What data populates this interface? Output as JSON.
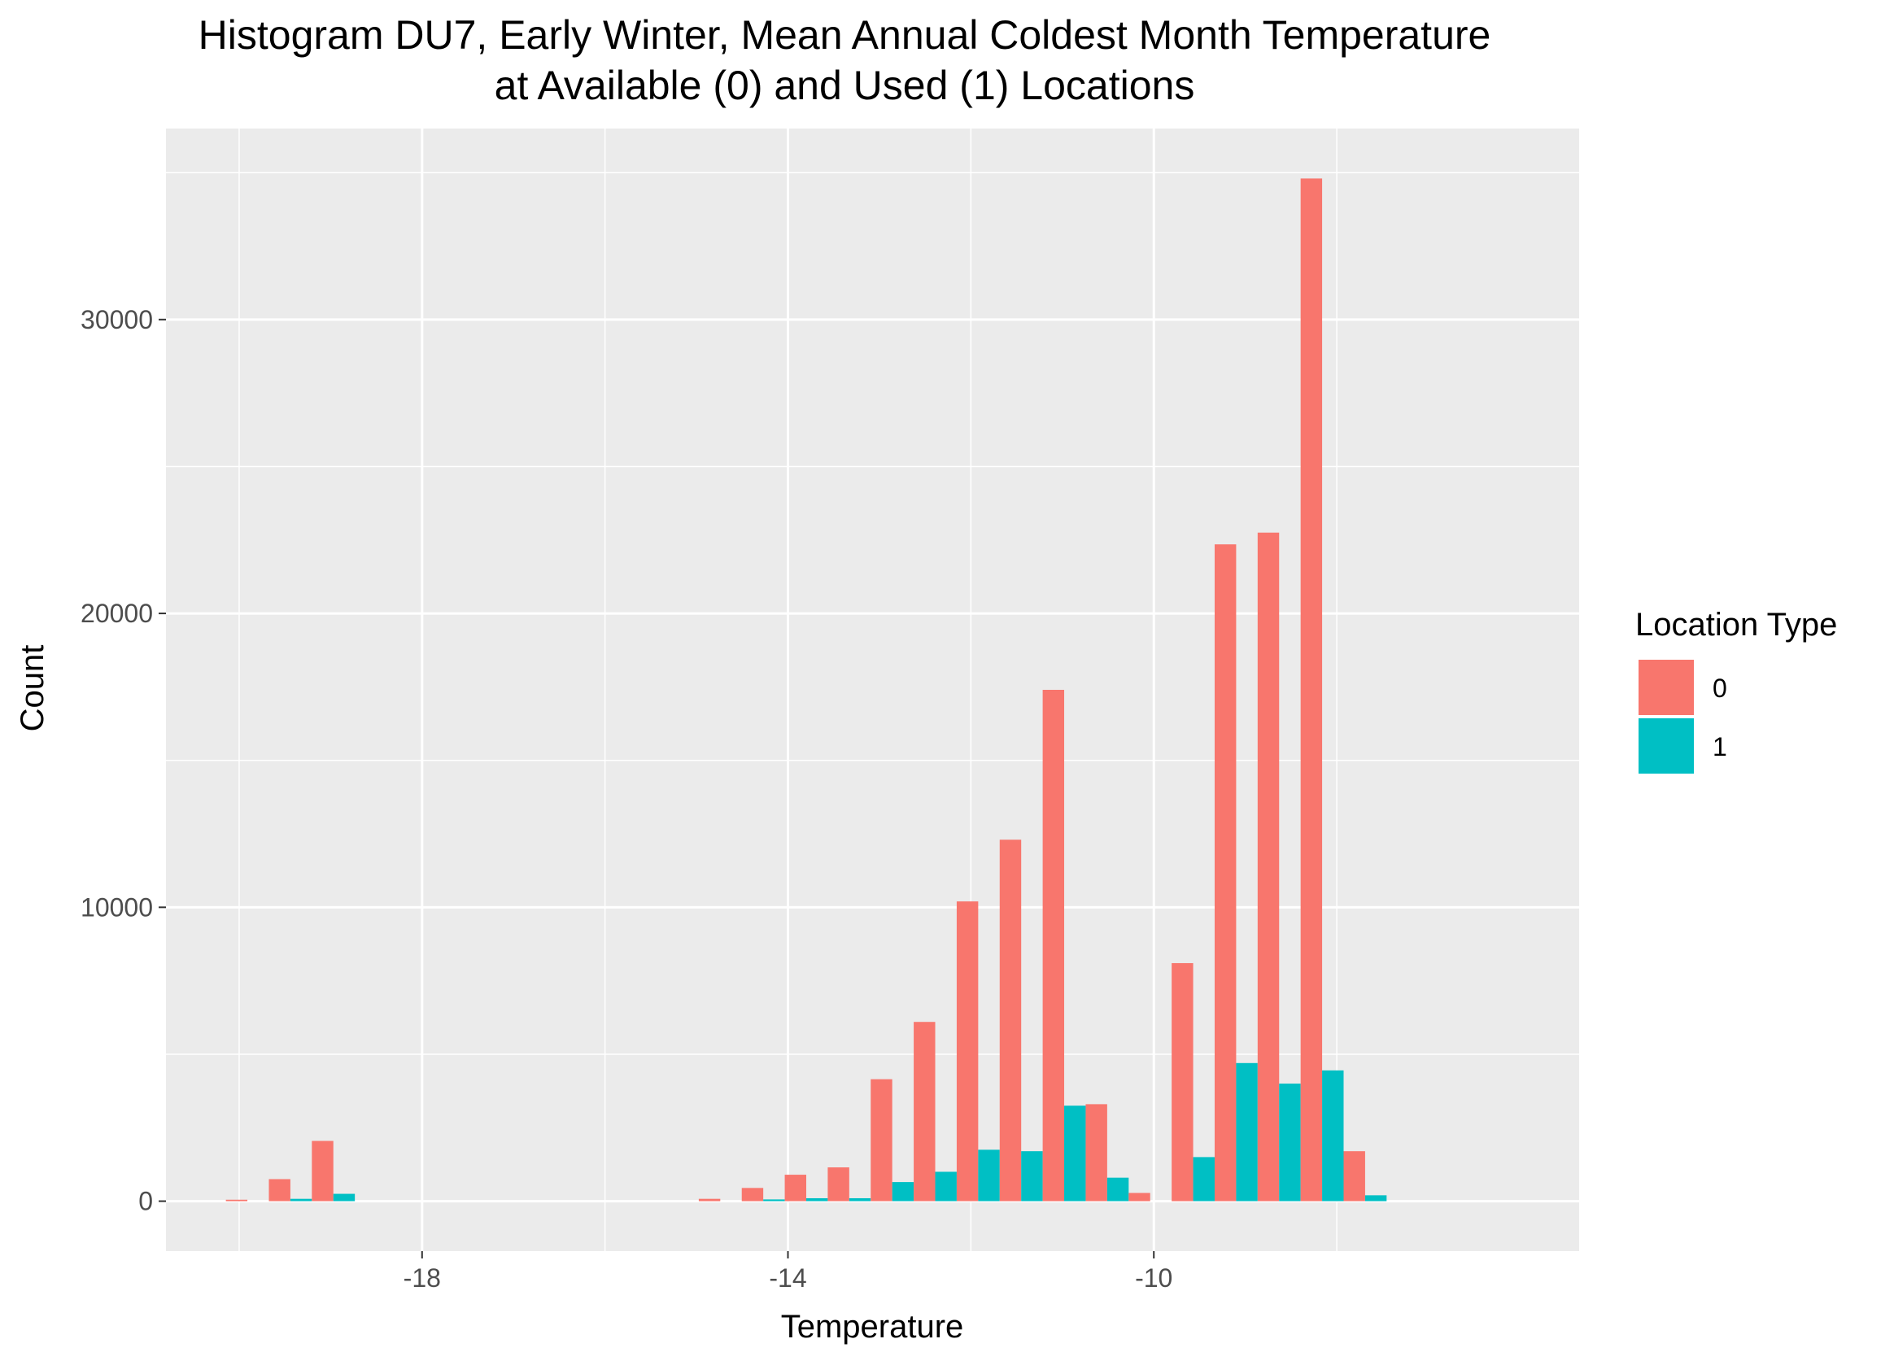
{
  "chart_data": {
    "type": "bar",
    "title_lines": [
      "Histogram DU7, Early Winter, Mean Annual Coldest Month Temperature",
      "at Available (0) and Used (1) Locations"
    ],
    "xlabel": "Temperature",
    "ylabel": "Count",
    "xlim": [
      -20.8,
      -5.35
    ],
    "ylim": [
      -1700,
      36500
    ],
    "x_ticks": [
      -18,
      -14,
      -10
    ],
    "x_tick_labels": [
      "-18",
      "-14",
      "-10"
    ],
    "x_minor_ticks": [
      -20,
      -16,
      -12,
      -8
    ],
    "y_ticks": [
      0,
      10000,
      20000,
      30000
    ],
    "y_tick_labels": [
      "0",
      "10000",
      "20000",
      "30000"
    ],
    "y_minor_ticks": [
      5000,
      15000,
      25000,
      35000
    ],
    "bin_width": 0.47,
    "bin_centers": [
      -19.91,
      -19.44,
      -18.97,
      -14.74,
      -14.27,
      -13.8,
      -13.33,
      -12.86,
      -12.39,
      -11.92,
      -11.45,
      -10.98,
      -10.51,
      -10.04,
      -9.57,
      -9.1,
      -8.63,
      -8.16,
      -7.69
    ],
    "legend": {
      "title": "Location Type",
      "position": "right"
    },
    "series": [
      {
        "name": "0",
        "color": "#F8766D",
        "values": [
          50,
          750,
          2050,
          80,
          450,
          900,
          1150,
          4150,
          6100,
          10200,
          12300,
          17400,
          3300,
          280,
          8100,
          22350,
          22750,
          34800,
          1700
        ]
      },
      {
        "name": "1",
        "color": "#00BFC4",
        "values": [
          0,
          80,
          250,
          0,
          60,
          100,
          100,
          650,
          1000,
          1750,
          1700,
          3250,
          800,
          0,
          1500,
          4700,
          4000,
          4450,
          200
        ]
      }
    ]
  }
}
